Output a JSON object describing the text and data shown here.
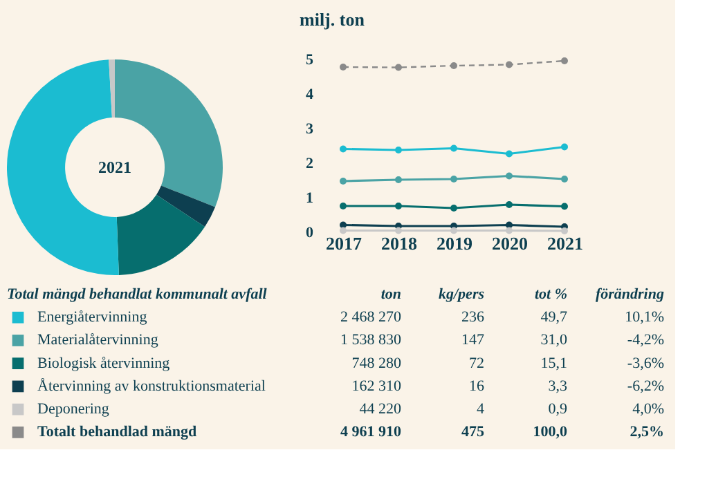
{
  "chart_data": [
    {
      "type": "donut",
      "annotations": [
        "2021"
      ],
      "categories": [
        null,
        null,
        null,
        null,
        null
      ],
      "values": [
        31.0,
        3.3,
        15.1,
        49.7,
        0.9
      ],
      "colors": [
        "#4aa3a5",
        "#0d3f50",
        "#066e6e",
        "#1bbcd1",
        "#c8c8c8"
      ]
    },
    {
      "type": "line",
      "ylabel": "milj. ton",
      "categories": [
        "2017",
        "2018",
        "2019",
        "2020",
        "2021"
      ],
      "ylim": [
        0,
        5
      ],
      "yticks": [
        0,
        1,
        2,
        3,
        4,
        5
      ],
      "marker": "circle",
      "series": [
        {
          "color": "#8a8a8a",
          "line_style": "dashed",
          "values": [
            4.78,
            4.77,
            4.82,
            4.85,
            4.96
          ]
        },
        {
          "color": "#1bbcd1",
          "line_style": "solid",
          "values": [
            2.41,
            2.38,
            2.43,
            2.27,
            2.47
          ]
        },
        {
          "color": "#4aa3a5",
          "line_style": "solid",
          "values": [
            1.48,
            1.52,
            1.54,
            1.63,
            1.54
          ]
        },
        {
          "color": "#066e6e",
          "line_style": "solid",
          "values": [
            0.76,
            0.76,
            0.7,
            0.8,
            0.75
          ]
        },
        {
          "color": "#0d3f50",
          "line_style": "solid",
          "values": [
            0.21,
            0.18,
            0.18,
            0.21,
            0.16
          ]
        },
        {
          "color": "#c8c8c8",
          "line_style": "solid",
          "values": [
            0.05,
            0.05,
            0.05,
            0.05,
            0.04
          ]
        }
      ]
    },
    {
      "type": "other",
      "title": "Total mängd behandlat kommunalt avfall",
      "categories": [
        "Energiåtervinning",
        "Materialåtervinning",
        "Biologisk återvinning",
        "Återvinning av konstruktionsmaterial",
        "Deponering",
        "Totalt behandlad mängd"
      ],
      "colors": [
        "#1bbcd1",
        "#4aa3a5",
        "#066e6e",
        "#0d3f50",
        "#c8c8c8",
        "#8a8a8a"
      ],
      "series": [
        {
          "name": "ton",
          "values": [
            2468270,
            1538830,
            748280,
            162310,
            44220,
            4961910
          ],
          "value_labels": [
            "2 468 270",
            "1 538 830",
            "748 280",
            "162 310",
            "44 220",
            "4 961 910"
          ]
        },
        {
          "name": "kg/pers",
          "values": [
            236,
            147,
            72,
            16,
            4,
            475
          ],
          "value_labels": [
            "236",
            "147",
            "72",
            "16",
            "4",
            "475"
          ]
        },
        {
          "name": "tot %",
          "values": [
            49.7,
            31.0,
            15.1,
            3.3,
            0.9,
            100.0
          ],
          "value_labels": [
            "49,7",
            "31,0",
            "15,1",
            "3,3",
            "0,9",
            "100,0"
          ]
        },
        {
          "name": "förändring",
          "values": [
            10.1,
            -4.2,
            -3.6,
            -6.2,
            4.0,
            2.5
          ],
          "value_labels": [
            "10,1%",
            "-4,2%",
            "-3,6%",
            "-6,2%",
            "4,0%",
            "2,5%"
          ]
        }
      ]
    }
  ]
}
